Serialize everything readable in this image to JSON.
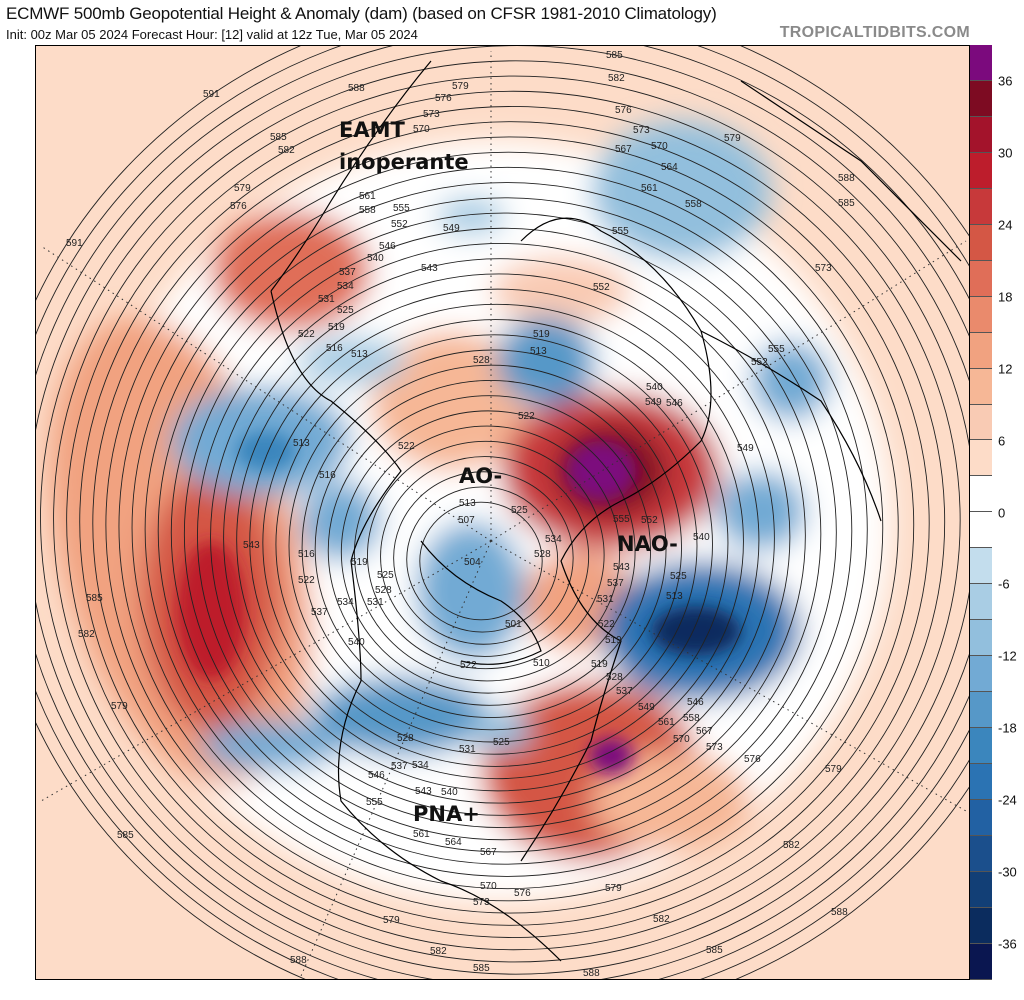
{
  "header": {
    "title": "ECMWF 500mb Geopotential Height & Anomaly (dam) (based on CFSR 1981-2010 Climatology)",
    "subtitle": "Init: 00z Mar 05 2024   Forecast Hour: [12]   valid at 12z Tue, Mar 05 2024",
    "brand": "TROPICALTIDBITS.COM"
  },
  "annotations": {
    "eamt": "EAMT",
    "eamt2": "inoperante",
    "ao": "AO-",
    "nao": "NAO-",
    "pna": "PNA+"
  },
  "colorbar": {
    "labels": [
      "36",
      "30",
      "24",
      "18",
      "12",
      "6",
      "0",
      "-6",
      "-12",
      "-18",
      "-24",
      "-30",
      "-36"
    ],
    "colors": [
      "#7b0a7d",
      "#7d0b22",
      "#a3132b",
      "#bd1d2c",
      "#c7393a",
      "#d45745",
      "#e06e58",
      "#ea8a6c",
      "#f1a280",
      "#f6b796",
      "#f9cbb4",
      "#fddcc8",
      "#ffffff",
      "#ffffff",
      "#c3dded",
      "#a9cde4",
      "#92bfdd",
      "#72aad4",
      "#5698c8",
      "#3b86bd",
      "#2b73b3",
      "#2261a3",
      "#1b4f8c",
      "#123f76",
      "#0b2c5e",
      "#0a1650"
    ]
  },
  "contour_labels": [
    "585",
    "582",
    "576",
    "573",
    "570",
    "567",
    "564",
    "561",
    "558",
    "555",
    "579",
    "588",
    "585",
    "573",
    "591",
    "588",
    "585",
    "582",
    "579",
    "576",
    "591",
    "576",
    "573",
    "579",
    "570",
    "561",
    "558",
    "555",
    "552",
    "549",
    "546",
    "543",
    "540",
    "537",
    "534",
    "531",
    "525",
    "522",
    "519",
    "516",
    "513",
    "552",
    "528",
    "519",
    "513",
    "540",
    "549",
    "546",
    "552",
    "555",
    "549",
    "522",
    "522",
    "513",
    "516",
    "513",
    "507",
    "525",
    "504",
    "516",
    "519",
    "522",
    "525",
    "528",
    "534",
    "531",
    "537",
    "543",
    "540",
    "585",
    "582",
    "579",
    "555",
    "552",
    "534",
    "528",
    "543",
    "537",
    "531",
    "540",
    "525",
    "513",
    "522",
    "519",
    "510",
    "519",
    "528",
    "537",
    "549",
    "561",
    "558",
    "546",
    "567",
    "570",
    "573",
    "576",
    "579",
    "582",
    "588",
    "585",
    "582",
    "579",
    "576",
    "573",
    "570",
    "567",
    "564",
    "561",
    "555",
    "546",
    "537",
    "543",
    "540",
    "534",
    "528",
    "531",
    "525",
    "522",
    "501",
    "585",
    "579",
    "582",
    "585",
    "588",
    "588"
  ]
}
